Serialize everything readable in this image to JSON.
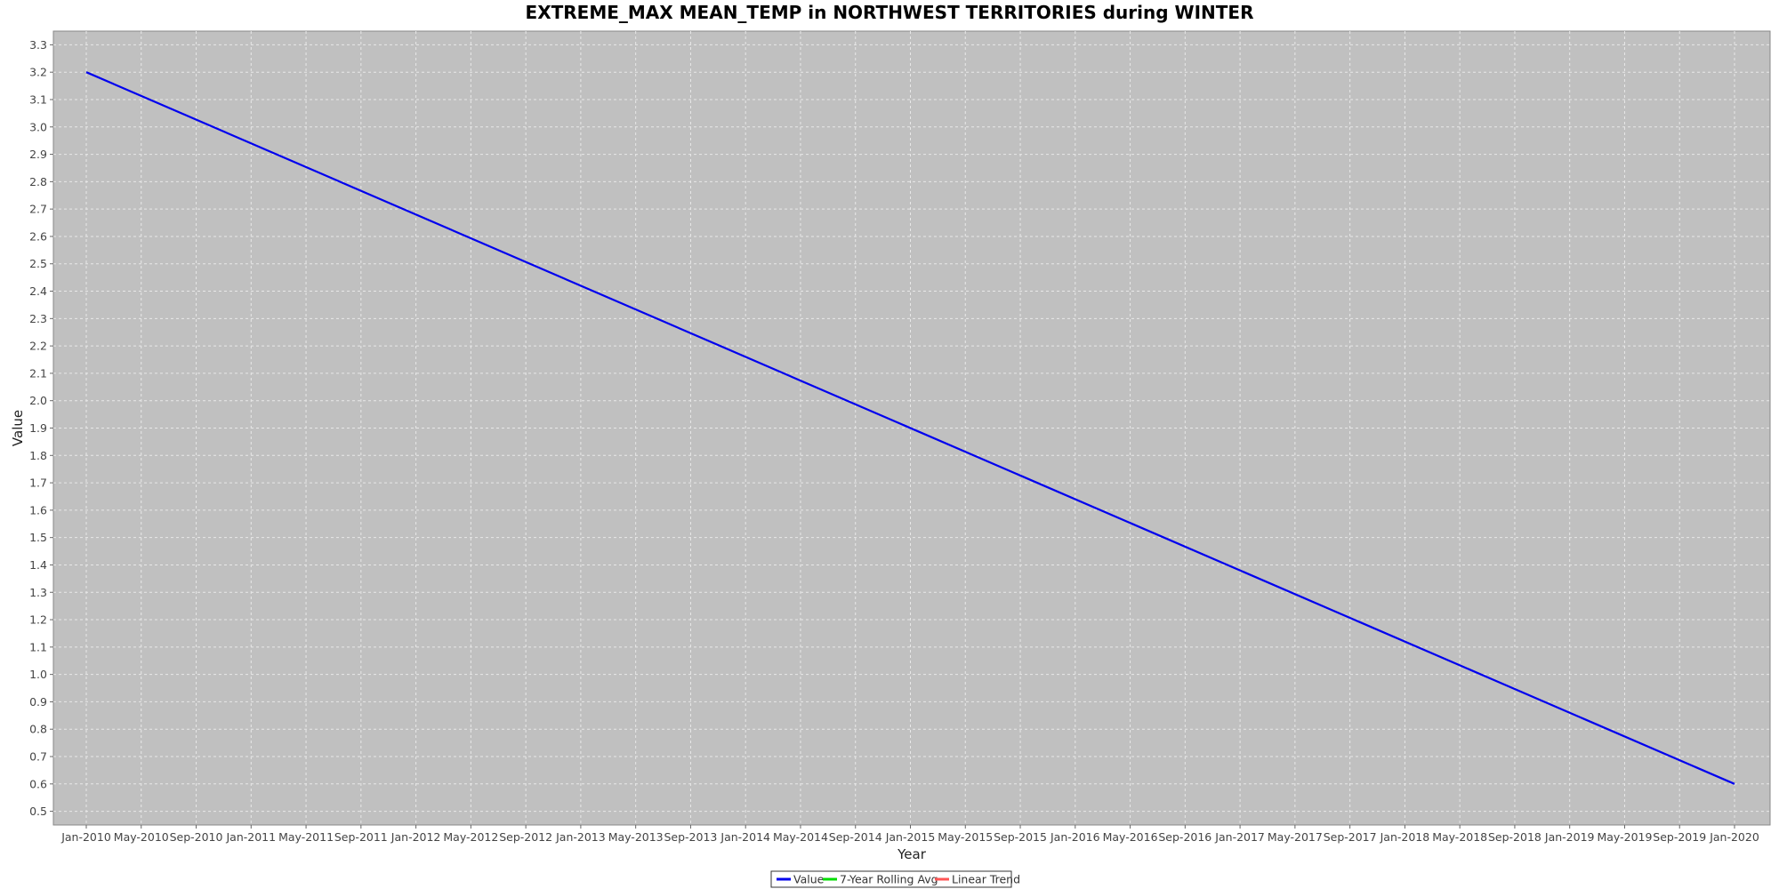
{
  "chart_data": {
    "type": "line",
    "title": "EXTREME_MAX MEAN_TEMP in NORTHWEST TERRITORIES during WINTER",
    "xlabel": "Year",
    "ylabel": "Value",
    "ylim": [
      0.45,
      3.35
    ],
    "yticks": [
      0.5,
      0.6,
      0.7,
      0.8,
      0.9,
      1.0,
      1.1,
      1.2,
      1.3,
      1.4,
      1.5,
      1.6,
      1.7,
      1.8,
      1.9,
      2.0,
      2.1,
      2.2,
      2.3,
      2.4,
      2.5,
      2.6,
      2.7,
      2.8,
      2.9,
      3.0,
      3.1,
      3.2,
      3.3
    ],
    "xticks": [
      "Jan-2010",
      "May-2010",
      "Sep-2010",
      "Jan-2011",
      "May-2011",
      "Sep-2011",
      "Jan-2012",
      "May-2012",
      "Sep-2012",
      "Jan-2013",
      "May-2013",
      "Sep-2013",
      "Jan-2014",
      "May-2014",
      "Sep-2014",
      "Jan-2015",
      "May-2015",
      "Sep-2015",
      "Jan-2016",
      "May-2016",
      "Sep-2016",
      "Jan-2017",
      "May-2017",
      "Sep-2017",
      "Jan-2018",
      "May-2018",
      "Sep-2018",
      "Jan-2019",
      "May-2019",
      "Sep-2019",
      "Jan-2020"
    ],
    "grid": true,
    "legend_position": "bottom-center",
    "series": [
      {
        "name": "Value",
        "color": "#0000ee",
        "x": [
          "Jan-2010",
          "Jan-2020"
        ],
        "y": [
          3.2,
          0.6
        ]
      },
      {
        "name": "7-Year Rolling Avg",
        "color": "#00dd00",
        "x": [],
        "y": []
      },
      {
        "name": "Linear Trend",
        "color": "#ff5555",
        "x": [],
        "y": []
      }
    ],
    "plot_background": "#c0c0c0",
    "grid_color": "#e8e8e8"
  }
}
